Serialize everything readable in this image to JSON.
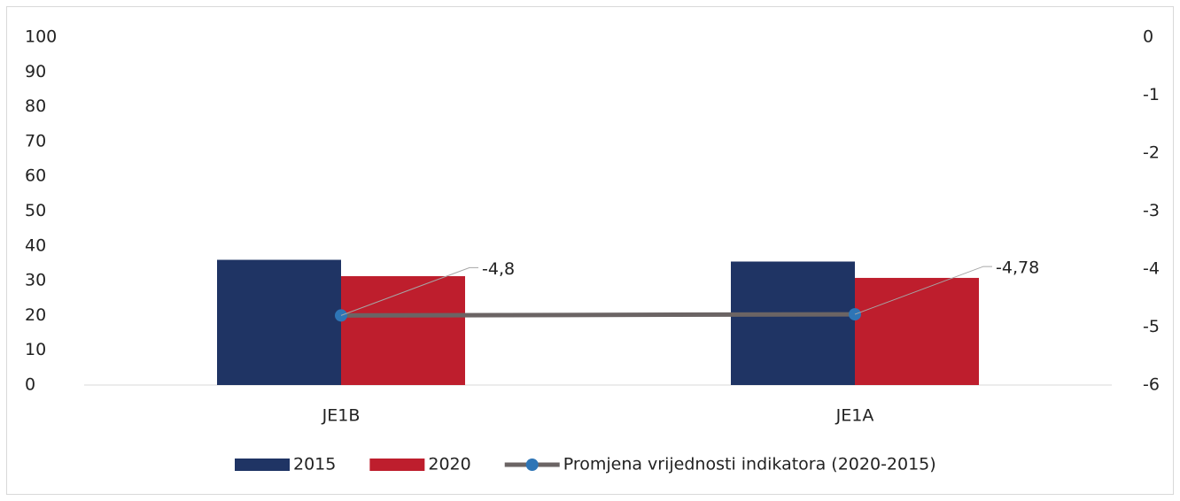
{
  "chart_data": {
    "type": "bar",
    "categories": [
      "JE1B",
      "JE1A"
    ],
    "series": [
      {
        "name": "2015",
        "type": "bar",
        "color": "#1f3464",
        "values": [
          36,
          35.5
        ]
      },
      {
        "name": "2020",
        "type": "bar",
        "color": "#be1e2d",
        "values": [
          31.3,
          30.8
        ]
      },
      {
        "name": "Promjena vrijednosti indikatora (2020-2015)",
        "type": "line",
        "axis": "y2",
        "color": "#6b6464",
        "marker_color": "#2e75b6",
        "values": [
          -4.8,
          -4.78
        ],
        "value_labels": [
          "-4,8",
          "-4,78"
        ]
      }
    ],
    "ylim": [
      0,
      100
    ],
    "yticks": [
      0,
      10,
      20,
      30,
      40,
      50,
      60,
      70,
      80,
      90,
      100
    ],
    "y2lim": [
      -6,
      0
    ],
    "y2ticks": [
      -6,
      -5,
      -4,
      -3,
      -2,
      -1,
      0
    ],
    "grid": false,
    "legend": "bottom"
  }
}
